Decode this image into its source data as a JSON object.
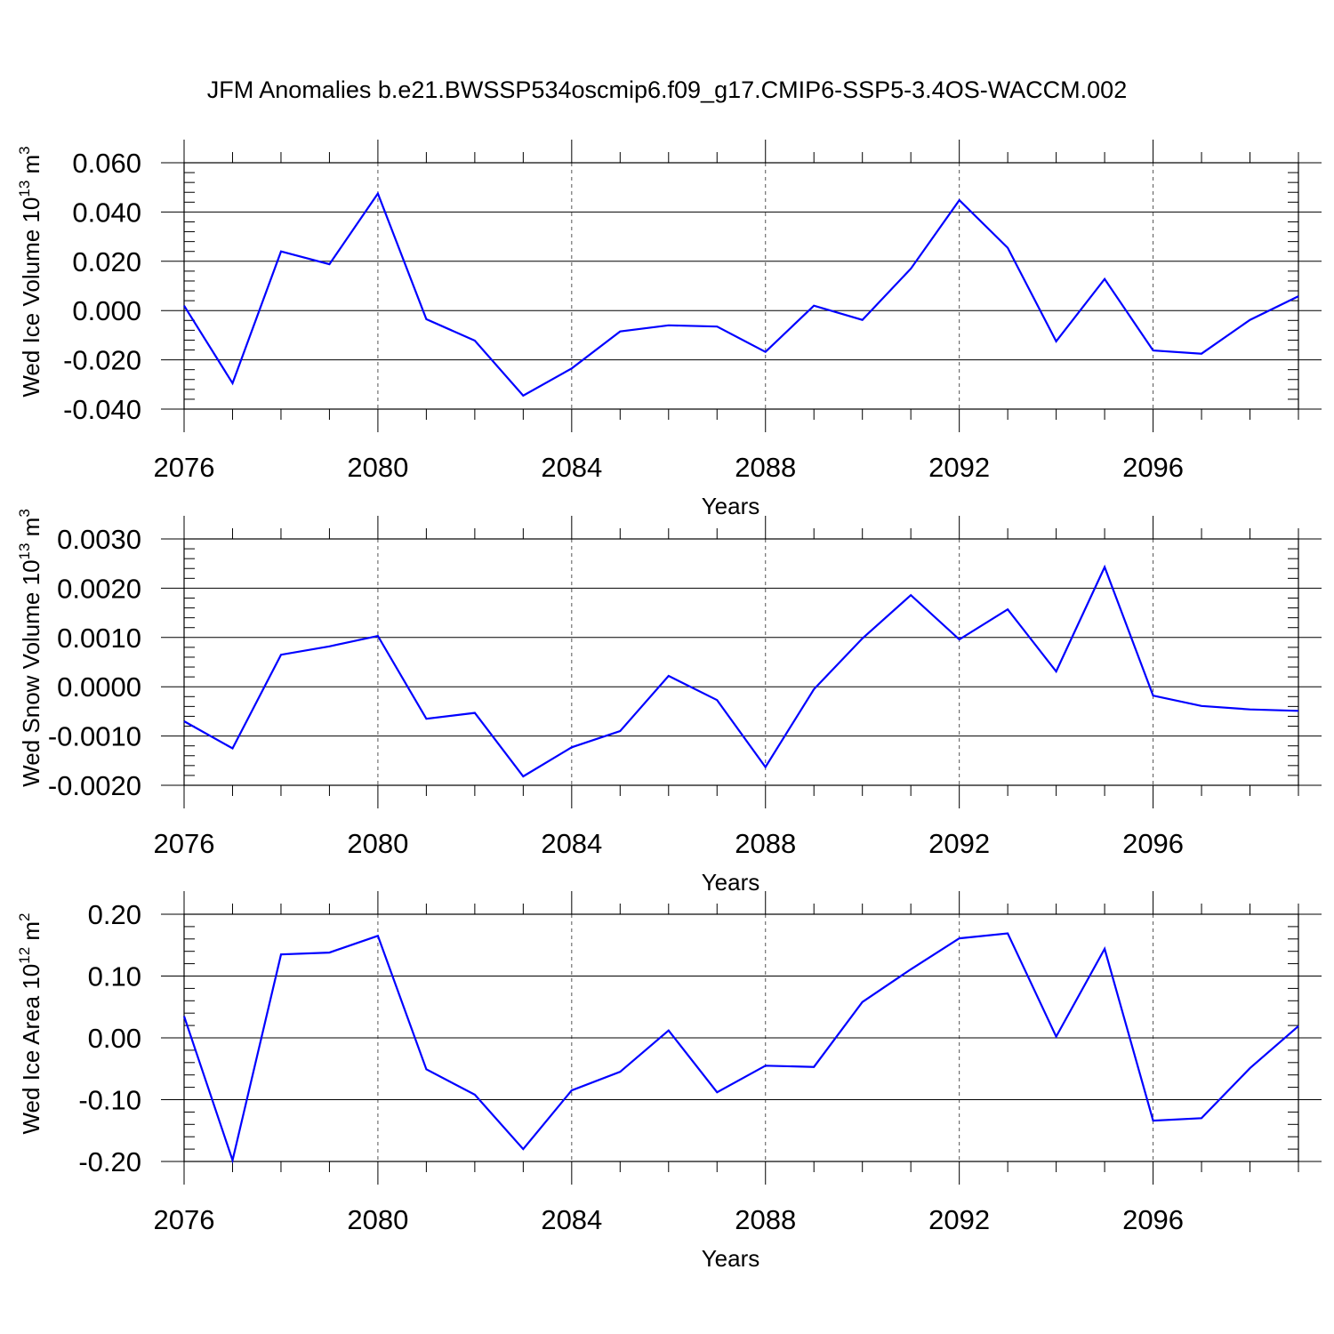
{
  "title": "JFM Anomalies b.e21.BWSSP534oscmip6.f09_g17.CMIP6-SSP5-3.4OS-WACCM.002",
  "colors": {
    "line": "#0000ff",
    "axis": "#000000",
    "grid": "#555555"
  },
  "chart_data": [
    {
      "type": "line",
      "id": "ice-volume",
      "ylabel": "Wed Ice Volume 10",
      "ylabel_exp": "13",
      "ylabel_unit": " m",
      "ylabel_unit_exp": "3",
      "xlabel": "Years",
      "xlim": [
        2076,
        2099
      ],
      "ylim": [
        -0.04,
        0.06
      ],
      "yticks": [
        -0.04,
        -0.02,
        0.0,
        0.02,
        0.04,
        0.06
      ],
      "ytick_labels": [
        "-0.040",
        "-0.020",
        "0.000",
        "0.020",
        "0.040",
        "0.060"
      ],
      "xticks": [
        2076,
        2080,
        2084,
        2088,
        2092,
        2096
      ],
      "xtick_labels": [
        "2076",
        "2080",
        "2084",
        "2088",
        "2092",
        "2096"
      ],
      "x": [
        2076,
        2077,
        2078,
        2079,
        2080,
        2081,
        2082,
        2083,
        2084,
        2085,
        2086,
        2087,
        2088,
        2089,
        2090,
        2091,
        2092,
        2093,
        2094,
        2095,
        2096,
        2097,
        2098,
        2099
      ],
      "series": [
        {
          "name": "Ice Volume",
          "values": [
            0.002,
            -0.0295,
            0.024,
            0.0188,
            0.0475,
            -0.0035,
            -0.0122,
            -0.0345,
            -0.0235,
            -0.0085,
            -0.006,
            -0.0065,
            -0.0168,
            0.002,
            -0.0038,
            0.017,
            0.0448,
            0.0255,
            -0.0125,
            0.0128,
            -0.0162,
            -0.0175,
            -0.0038,
            0.0058
          ]
        }
      ]
    },
    {
      "type": "line",
      "id": "snow-volume",
      "ylabel": "Wed Snow Volume 10",
      "ylabel_exp": "13",
      "ylabel_unit": " m",
      "ylabel_unit_exp": "3",
      "xlabel": "Years",
      "xlim": [
        2076,
        2099
      ],
      "ylim": [
        -0.002,
        0.003
      ],
      "yticks": [
        -0.002,
        -0.001,
        0.0,
        0.001,
        0.002,
        0.003
      ],
      "ytick_labels": [
        "-0.0020",
        "-0.0010",
        "0.0000",
        "0.0010",
        "0.0020",
        "0.0030"
      ],
      "xticks": [
        2076,
        2080,
        2084,
        2088,
        2092,
        2096
      ],
      "xtick_labels": [
        "2076",
        "2080",
        "2084",
        "2088",
        "2092",
        "2096"
      ],
      "x": [
        2076,
        2077,
        2078,
        2079,
        2080,
        2081,
        2082,
        2083,
        2084,
        2085,
        2086,
        2087,
        2088,
        2089,
        2090,
        2091,
        2092,
        2093,
        2094,
        2095,
        2096,
        2097,
        2098,
        2099
      ],
      "series": [
        {
          "name": "Snow Volume",
          "values": [
            -0.0007,
            -0.00125,
            0.00065,
            0.00082,
            0.00103,
            -0.00065,
            -0.00053,
            -0.00182,
            -0.00123,
            -0.0009,
            0.00022,
            -0.00027,
            -0.00163,
            -5e-05,
            0.00098,
            0.00186,
            0.00096,
            0.00157,
            0.00031,
            0.00243,
            -0.00018,
            -0.00039,
            -0.00046,
            -0.00049
          ]
        }
      ]
    },
    {
      "type": "line",
      "id": "ice-area",
      "ylabel": "Wed Ice Area 10",
      "ylabel_exp": "12",
      "ylabel_unit": " m",
      "ylabel_unit_exp": "2",
      "xlabel": "Years",
      "xlim": [
        2076,
        2099
      ],
      "ylim": [
        -0.2,
        0.2
      ],
      "yticks": [
        -0.2,
        -0.1,
        0.0,
        0.1,
        0.2
      ],
      "ytick_labels": [
        "-0.20",
        "-0.10",
        "0.00",
        "0.10",
        "0.20"
      ],
      "xticks": [
        2076,
        2080,
        2084,
        2088,
        2092,
        2096
      ],
      "xtick_labels": [
        "2076",
        "2080",
        "2084",
        "2088",
        "2092",
        "2096"
      ],
      "x": [
        2076,
        2077,
        2078,
        2079,
        2080,
        2081,
        2082,
        2083,
        2084,
        2085,
        2086,
        2087,
        2088,
        2089,
        2090,
        2091,
        2092,
        2093,
        2094,
        2095,
        2096,
        2097,
        2098,
        2099
      ],
      "series": [
        {
          "name": "Ice Area",
          "values": [
            0.035,
            -0.198,
            0.135,
            0.138,
            0.165,
            -0.051,
            -0.092,
            -0.18,
            -0.085,
            -0.055,
            0.012,
            -0.088,
            -0.045,
            -0.047,
            0.058,
            0.111,
            0.161,
            0.169,
            0.002,
            0.144,
            -0.134,
            -0.13,
            -0.049,
            0.019
          ]
        }
      ]
    }
  ]
}
